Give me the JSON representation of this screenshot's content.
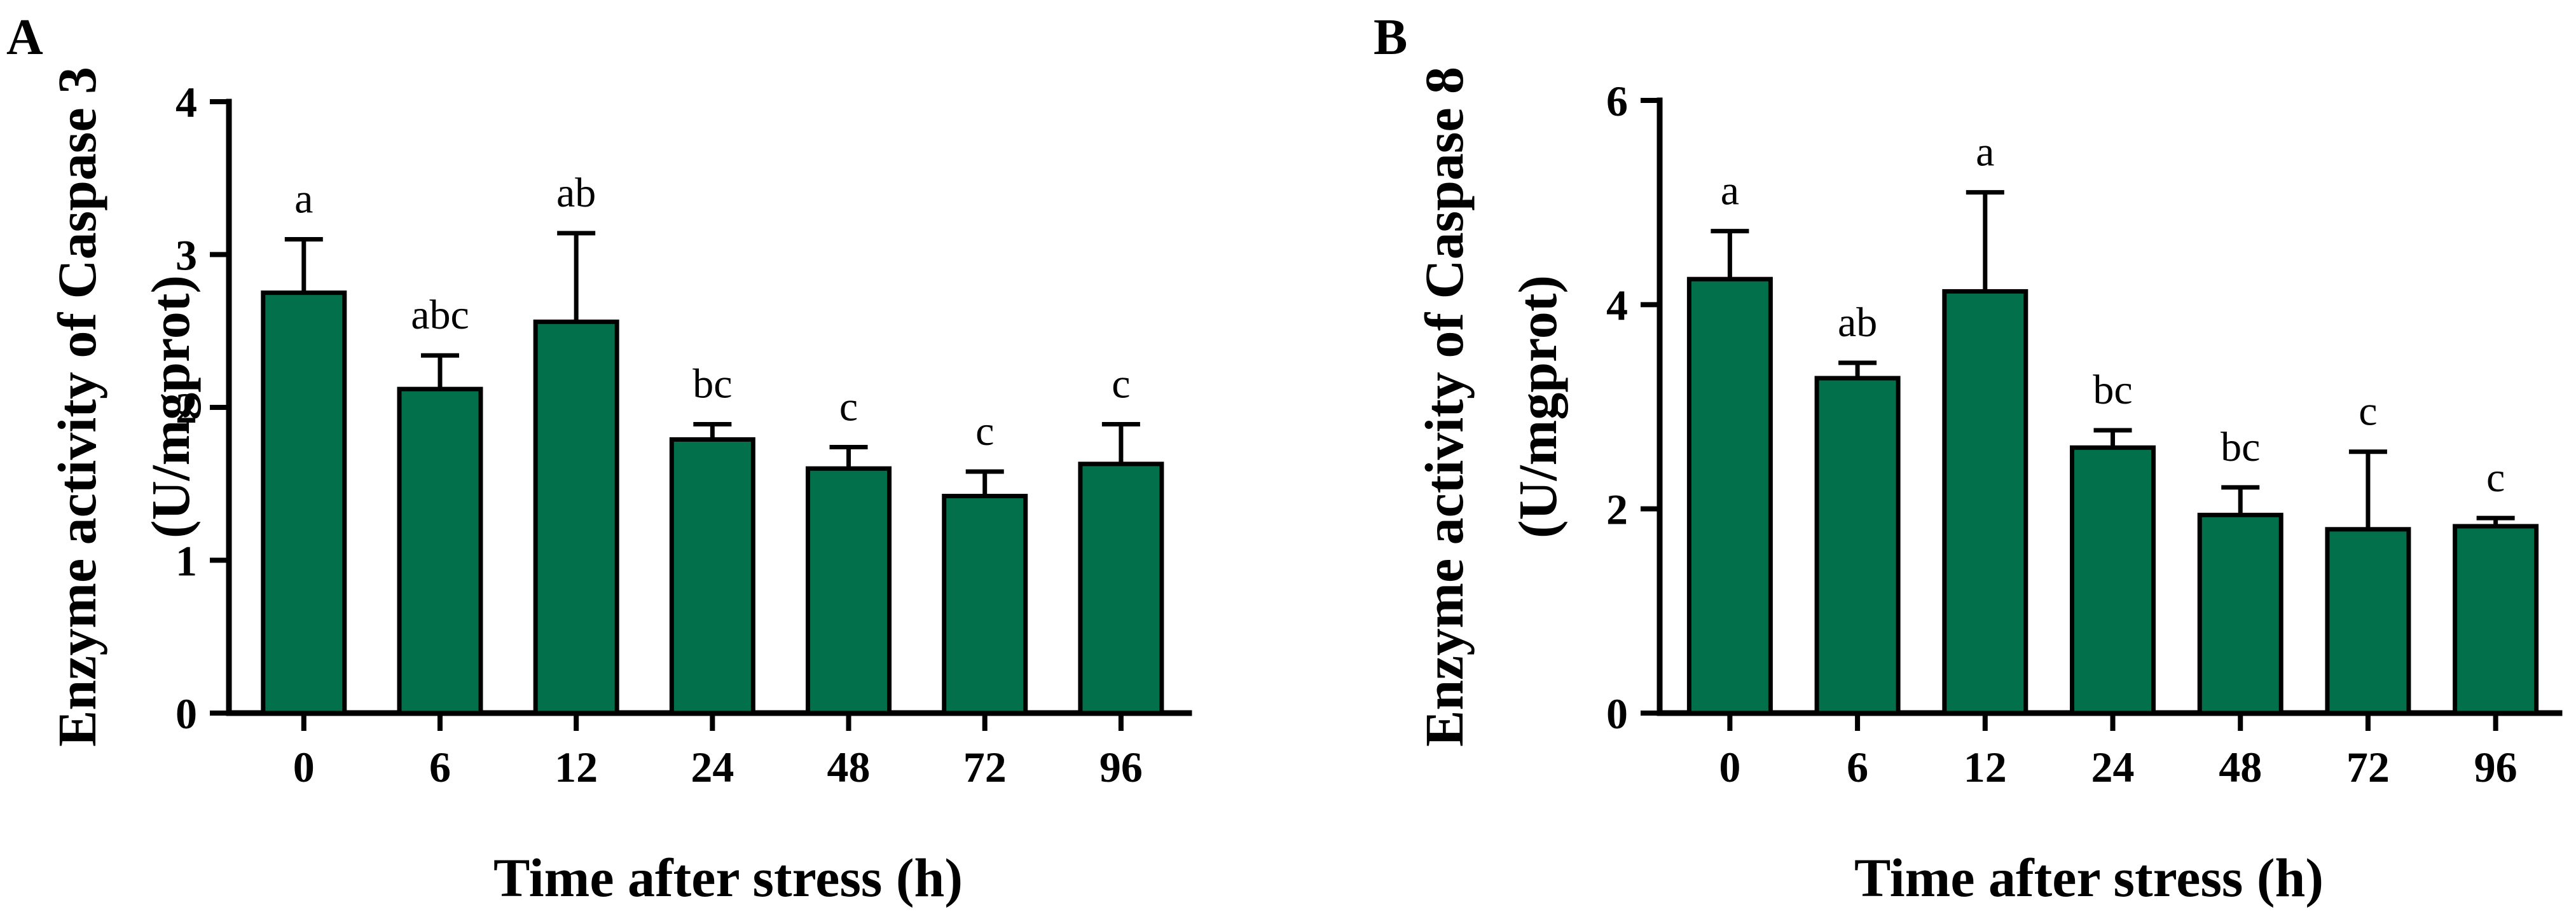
{
  "colors": {
    "bar_fill": "#02704a",
    "axis": "#000000"
  },
  "chart_data": [
    {
      "type": "bar",
      "panel": "A",
      "categories": [
        "0",
        "6",
        "12",
        "24",
        "48",
        "72",
        "96"
      ],
      "values": [
        2.75,
        2.12,
        2.56,
        1.79,
        1.6,
        1.42,
        1.63
      ],
      "errors": [
        0.35,
        0.22,
        0.58,
        0.1,
        0.14,
        0.16,
        0.26
      ],
      "labels": [
        "a",
        "abc",
        "ab",
        "bc",
        "c",
        "c",
        "c"
      ],
      "ylabel_line1": "Enzyme activity of Caspase 3",
      "ylabel_line2": "(U/mgprot)",
      "xlabel": "Time after stress (h)",
      "ylim": [
        0,
        4
      ],
      "yticks": [
        0,
        1,
        2,
        3,
        4
      ],
      "ytick_labels": [
        "0",
        "1",
        "2",
        "3",
        "4"
      ]
    },
    {
      "type": "bar",
      "panel": "B",
      "categories": [
        "0",
        "6",
        "12",
        "24",
        "48",
        "72",
        "96"
      ],
      "values": [
        4.25,
        3.28,
        4.13,
        2.6,
        1.94,
        1.8,
        1.83
      ],
      "errors": [
        0.47,
        0.15,
        0.97,
        0.17,
        0.27,
        0.76,
        0.08
      ],
      "labels": [
        "a",
        "ab",
        "a",
        "bc",
        "bc",
        "c",
        "c"
      ],
      "ylabel_line1": "Enzyme activity of Caspase 8",
      "ylabel_line2": "(U/mgprot)",
      "xlabel": "Time after stress (h)",
      "ylim": [
        0,
        6
      ],
      "yticks": [
        0,
        2,
        4,
        6
      ],
      "ytick_labels": [
        "0",
        "2",
        "4",
        "6"
      ]
    }
  ]
}
